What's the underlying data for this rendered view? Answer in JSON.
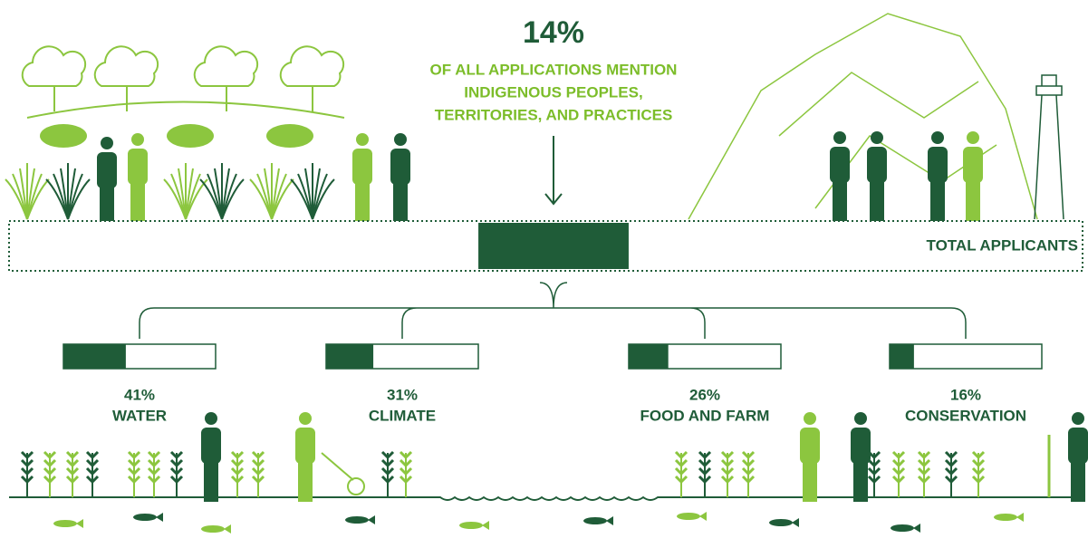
{
  "headline": {
    "value": 14,
    "label": "14%",
    "lines": [
      "OF ALL APPLICATIONS MENTION",
      "INDIGENOUS PEOPLES,",
      "TERRITORIES, AND PRACTICES"
    ]
  },
  "total_label": "TOTAL APPLICANTS",
  "chart_data": {
    "type": "bar",
    "categories": [
      "WATER",
      "CLIMATE",
      "FOOD AND FARM",
      "CONSERVATION"
    ],
    "values": [
      41,
      31,
      26,
      16
    ],
    "value_labels": [
      "41%",
      "31%",
      "26%",
      "16%"
    ],
    "color": "#1f5c38",
    "ylim": [
      0,
      100
    ]
  }
}
